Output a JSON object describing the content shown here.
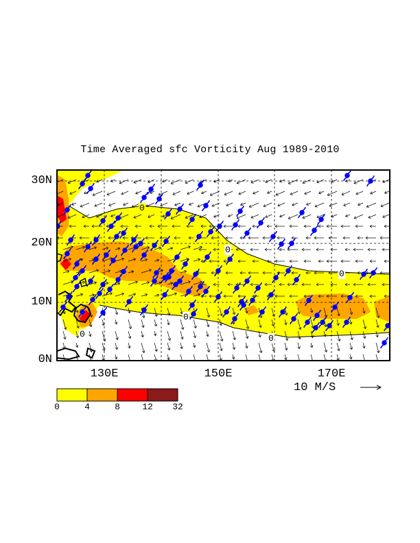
{
  "title": "Time Averaged sfc Vorticity  Aug 1989-2010",
  "axes": {
    "y_ticks": [
      "30N",
      "20N",
      "10N",
      "0N"
    ],
    "x_ticks": [
      "130E",
      "150E",
      "170E"
    ]
  },
  "contour_label": "0",
  "vector_scale": {
    "label": "10 M/S",
    "arrow": "→"
  },
  "colorbar": {
    "levels": [
      "0",
      "4",
      "8",
      "12",
      "32"
    ],
    "colors": [
      "#ffff00",
      "#ffa500",
      "#ff0000",
      "#8b1a1a"
    ]
  },
  "colors": {
    "land_outline": "#000000",
    "storm_marker": "#0000ff",
    "contour_line": "#000000"
  },
  "region": {
    "lon_min": 120,
    "lon_max": 180,
    "lat_min": 0,
    "lat_max": 32
  }
}
